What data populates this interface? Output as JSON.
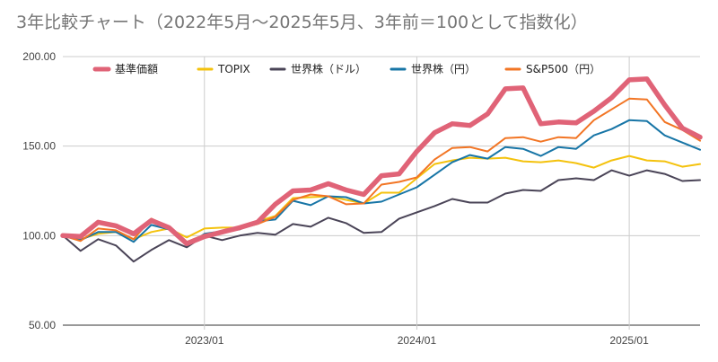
{
  "chart_data": {
    "type": "line",
    "title": "3年比較チャート（2022年5月〜2025年5月、3年前＝100として指数化）",
    "xlabel": "",
    "ylabel": "",
    "ylim": [
      50,
      200
    ],
    "y_ticks": [
      "50.00",
      "100.00",
      "150.00",
      "200.00"
    ],
    "x_ticks": [
      "2023/01",
      "2024/01",
      "2025/01"
    ],
    "x": [
      "2022/05",
      "2022/06",
      "2022/07",
      "2022/08",
      "2022/09",
      "2022/10",
      "2022/11",
      "2022/12",
      "2023/01",
      "2023/02",
      "2023/03",
      "2023/04",
      "2023/05",
      "2023/06",
      "2023/07",
      "2023/08",
      "2023/09",
      "2023/10",
      "2023/11",
      "2023/12",
      "2024/01",
      "2024/02",
      "2024/03",
      "2024/04",
      "2024/05",
      "2024/06",
      "2024/07",
      "2024/08",
      "2024/09",
      "2024/10",
      "2024/11",
      "2024/12",
      "2025/01",
      "2025/02",
      "2025/03",
      "2025/04",
      "2025/05"
    ],
    "legend_position": "top",
    "grid": "horizontal and vertical",
    "series": [
      {
        "name": "基準価額",
        "color": "#e06377",
        "width": 5.5,
        "values": [
          100.0,
          99.5,
          107.5,
          105.5,
          101.0,
          108.5,
          104.5,
          95.5,
          99.5,
          102.0,
          104.5,
          107.5,
          117.5,
          125.0,
          125.5,
          129.0,
          125.5,
          123.0,
          133.5,
          134.5,
          147.0,
          157.5,
          162.5,
          161.5,
          168.0,
          182.0,
          182.5,
          162.5,
          163.5,
          163.0,
          169.5,
          177.0,
          187.0,
          187.5,
          173.0,
          160.0,
          155.0
        ]
      },
      {
        "name": "TOPIX",
        "color": "#f4c20d",
        "width": 2,
        "values": [
          100.0,
          98.0,
          101.0,
          102.0,
          98.0,
          102.0,
          104.0,
          99.0,
          104.0,
          104.5,
          104.5,
          108.0,
          111.0,
          121.0,
          121.5,
          122.0,
          120.0,
          118.0,
          124.0,
          124.0,
          132.0,
          140.0,
          142.0,
          143.5,
          143.0,
          143.5,
          141.5,
          141.0,
          142.0,
          140.5,
          138.0,
          142.0,
          144.5,
          142.0,
          141.5,
          138.5,
          140.0
        ]
      },
      {
        "name": "世界株（ドル）",
        "color": "#4a4457",
        "width": 2,
        "values": [
          100.0,
          91.5,
          98.0,
          94.5,
          85.5,
          92.0,
          97.5,
          93.5,
          100.0,
          97.5,
          100.0,
          101.5,
          100.5,
          106.5,
          105.0,
          110.0,
          107.0,
          101.5,
          102.0,
          109.5,
          113.0,
          116.5,
          120.5,
          118.5,
          118.5,
          123.5,
          125.5,
          125.0,
          131.0,
          132.0,
          131.0,
          136.5,
          133.5,
          136.5,
          134.5,
          130.5,
          131.0
        ]
      },
      {
        "name": "世界株（円）",
        "color": "#1775a6",
        "width": 2,
        "values": [
          100.0,
          97.5,
          102.0,
          102.0,
          96.5,
          106.0,
          103.5,
          94.5,
          101.0,
          102.5,
          103.5,
          108.0,
          109.0,
          119.5,
          117.0,
          122.0,
          121.5,
          118.0,
          119.0,
          123.0,
          127.0,
          134.0,
          141.0,
          145.0,
          143.0,
          149.5,
          148.5,
          144.5,
          149.5,
          148.5,
          156.0,
          159.5,
          164.5,
          164.0,
          156.0,
          152.0,
          148.0
        ]
      },
      {
        "name": "S&P500（円）",
        "color": "#f27524",
        "width": 2,
        "values": [
          100.0,
          97.0,
          104.0,
          103.0,
          98.0,
          109.5,
          105.0,
          96.5,
          100.5,
          102.5,
          104.0,
          106.5,
          110.5,
          120.0,
          123.0,
          122.0,
          117.5,
          118.0,
          128.5,
          130.0,
          132.5,
          142.5,
          149.0,
          149.5,
          147.0,
          154.5,
          155.0,
          152.5,
          155.0,
          154.5,
          164.5,
          170.5,
          176.5,
          176.0,
          163.5,
          159.0,
          153.0
        ]
      }
    ]
  }
}
